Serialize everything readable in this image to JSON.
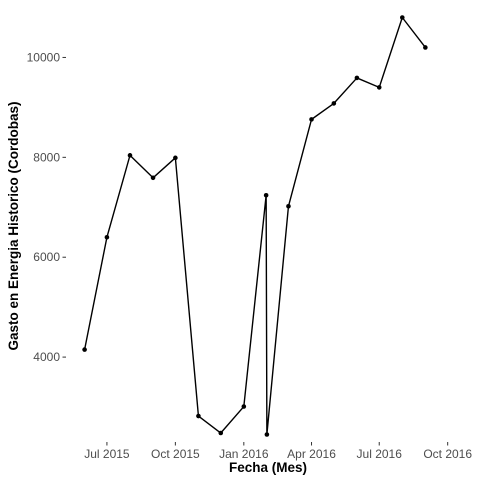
{
  "chart_data": {
    "type": "line",
    "title": "",
    "xlabel": "Fecha (Mes)",
    "ylabel": "Gasto en Energia Historico (Cordobas)",
    "x_ticks": [
      "Jul 2015",
      "Oct 2015",
      "Jan 2016",
      "Apr 2016",
      "Jul 2016",
      "Oct 2016"
    ],
    "y_ticks": [
      4000,
      6000,
      8000,
      10000
    ],
    "xlim": [
      "2015-05-07",
      "2016-10-31"
    ],
    "ylim": [
      2300,
      10950
    ],
    "grid": false,
    "series": [
      {
        "x": [
          "2015-06-01",
          "2015-07-01",
          "2015-08-01",
          "2015-09-01",
          "2015-10-01",
          "2015-11-01",
          "2015-12-01",
          "2016-01-01",
          "2016-01-31",
          "2016-02-01",
          "2016-03-01",
          "2016-04-01",
          "2016-05-01",
          "2016-06-01",
          "2016-07-01",
          "2016-08-01",
          "2016-09-01"
        ],
        "y": [
          4150,
          6400,
          8040,
          7590,
          7990,
          2820,
          2480,
          3010,
          7240,
          2450,
          7020,
          8760,
          9080,
          9590,
          9400,
          10800,
          10200
        ]
      }
    ],
    "style": {
      "line_color": "#000000",
      "point_color": "#000000",
      "background": "#ffffff"
    }
  }
}
